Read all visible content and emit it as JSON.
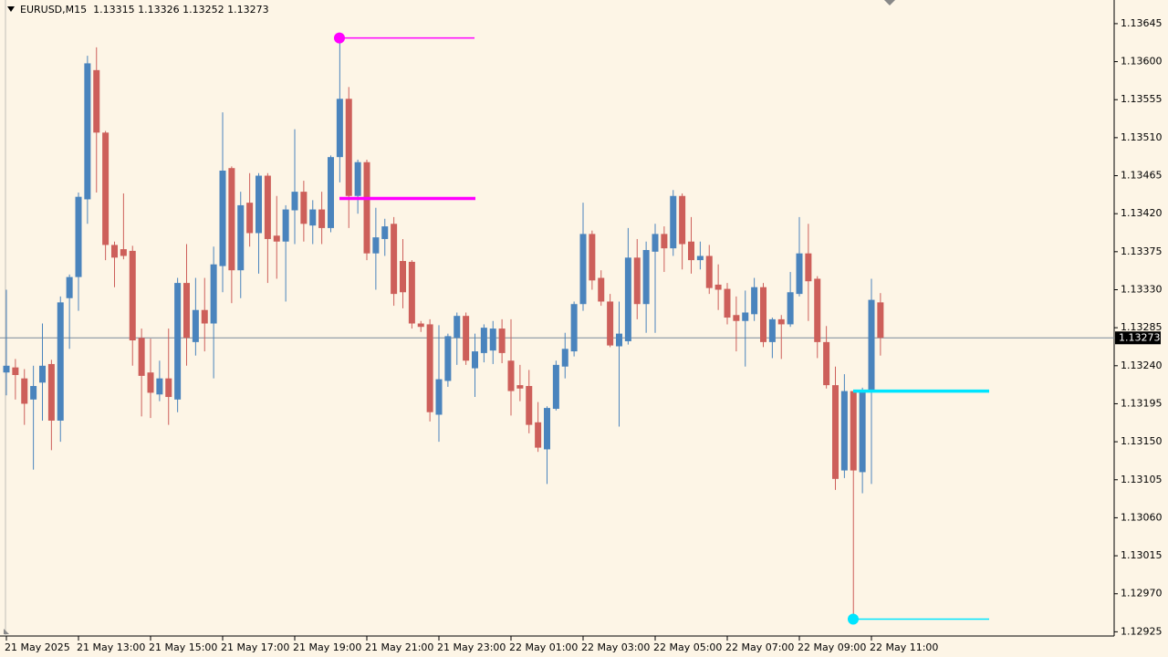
{
  "chart_data": {
    "type": "candlestick",
    "title": "EURUSD,M15  1.13315 1.13326 1.13252 1.13273",
    "categories": [
      "21 May 2025",
      null,
      null,
      null,
      null,
      null,
      null,
      null,
      "21 May 13:00",
      null,
      null,
      null,
      null,
      null,
      null,
      null,
      "21 May 15:00",
      null,
      null,
      null,
      null,
      null,
      null,
      null,
      "21 May 17:00",
      null,
      null,
      null,
      null,
      null,
      null,
      null,
      "21 May 19:00",
      null,
      null,
      null,
      null,
      null,
      null,
      null,
      "21 May 21:00",
      null,
      null,
      null,
      null,
      null,
      null,
      null,
      "21 May 23:00",
      null,
      null,
      null,
      null,
      null,
      null,
      null,
      "22 May 01:00",
      null,
      null,
      null,
      null,
      null,
      null,
      null,
      "22 May 03:00",
      null,
      null,
      null,
      null,
      null,
      null,
      null,
      "22 May 05:00",
      null,
      null,
      null,
      null,
      null,
      null,
      null,
      "22 May 07:00",
      null,
      null,
      null,
      null,
      null,
      null,
      null,
      "22 May 09:00",
      null,
      null,
      null,
      null,
      null,
      null,
      null,
      "22 May 11:00",
      null
    ],
    "open": [
      1.13232,
      1.13238,
      1.13225,
      1.132,
      1.1322,
      1.13242,
      1.13175,
      1.1332,
      1.13345,
      1.13437,
      1.1359,
      1.13516,
      1.13383,
      1.13378,
      1.13376,
      1.13273,
      1.13232,
      1.13206,
      1.13225,
      1.132,
      1.13338,
      1.13268,
      1.13306,
      1.1329,
      1.13358,
      1.13474,
      1.13353,
      1.13433,
      1.13397,
      1.13465,
      1.13394,
      1.13387,
      1.13424,
      1.13446,
      1.13406,
      1.13425,
      1.13403,
      1.13487,
      1.13556,
      1.13441,
      1.13481,
      1.13373,
      1.1339,
      1.13408,
      1.13364,
      1.13363,
      1.1329,
      1.13289,
      1.13182,
      1.13222,
      1.13273,
      1.13299,
      1.13237,
      1.13255,
      1.13258,
      1.13284,
      1.13246,
      1.13217,
      1.13216,
      1.13173,
      1.13141,
      1.13189,
      1.13239,
      1.13257,
      1.13313,
      1.13396,
      1.13344,
      1.13316,
      1.13263,
      1.13269,
      1.13368,
      1.13313,
      1.13375,
      1.13396,
      1.13379,
      1.13441,
      1.13387,
      1.13365,
      1.1337,
      1.13336,
      1.13331,
      1.133,
      1.13293,
      1.13301,
      1.13333,
      1.13268,
      1.13295,
      1.13289,
      1.13325,
      1.13373,
      1.13343,
      1.13268,
      1.13217,
      1.13116,
      1.1321,
      1.13114,
      1.1321,
      1.13315
    ],
    "high": [
      1.1333,
      1.13248,
      1.13236,
      1.1324,
      1.1329,
      1.13247,
      1.13322,
      1.13348,
      1.13445,
      1.13607,
      1.13617,
      1.13518,
      1.13387,
      1.13444,
      1.13382,
      1.13284,
      1.13272,
      1.13246,
      1.13284,
      1.13344,
      1.13384,
      1.13344,
      1.13344,
      1.13381,
      1.1354,
      1.13476,
      1.13446,
      1.13468,
      1.13468,
      1.13468,
      1.13441,
      1.1343,
      1.1352,
      1.13459,
      1.13436,
      1.13446,
      1.13489,
      1.13628,
      1.1357,
      1.13484,
      1.13484,
      1.13427,
      1.13414,
      1.13416,
      1.1339,
      1.13365,
      1.13293,
      1.13295,
      1.13288,
      1.13278,
      1.13303,
      1.13303,
      1.13278,
      1.13289,
      1.13293,
      1.13295,
      1.13295,
      1.13241,
      1.13235,
      1.13197,
      1.13192,
      1.13246,
      1.13279,
      1.13316,
      1.13433,
      1.134,
      1.13353,
      1.13325,
      1.13316,
      1.13403,
      1.1339,
      1.13387,
      1.13408,
      1.13405,
      1.13448,
      1.13444,
      1.13416,
      1.13387,
      1.13383,
      1.1336,
      1.13338,
      1.13322,
      1.13329,
      1.13344,
      1.13338,
      1.13297,
      1.133,
      1.13351,
      1.13416,
      1.13408,
      1.13346,
      1.13287,
      1.13239,
      1.1323,
      1.1321,
      1.13214,
      1.13343,
      1.13326
    ],
    "low": [
      1.13205,
      1.132,
      1.1317,
      1.13117,
      1.13175,
      1.1314,
      1.1315,
      1.1326,
      1.13305,
      1.13408,
      1.13445,
      1.13365,
      1.13333,
      1.13366,
      1.1324,
      1.1318,
      1.13178,
      1.13198,
      1.1317,
      1.13185,
      1.1324,
      1.13252,
      1.13257,
      1.13225,
      1.13327,
      1.13314,
      1.1332,
      1.13381,
      1.13349,
      1.13338,
      1.13343,
      1.13316,
      1.13384,
      1.13387,
      1.13384,
      1.13384,
      1.13398,
      1.13457,
      1.13403,
      1.1342,
      1.13365,
      1.1333,
      1.1337,
      1.13311,
      1.13308,
      1.13284,
      1.1328,
      1.13174,
      1.1315,
      1.13215,
      1.13241,
      1.13241,
      1.13203,
      1.13244,
      1.13242,
      1.13243,
      1.13181,
      1.13198,
      1.1316,
      1.13138,
      1.131,
      1.13187,
      1.13225,
      1.13251,
      1.13305,
      1.1333,
      1.13311,
      1.13262,
      1.13168,
      1.13265,
      1.13295,
      1.13279,
      1.13279,
      1.13351,
      1.1337,
      1.13354,
      1.13349,
      1.13354,
      1.13325,
      1.13306,
      1.13289,
      1.13257,
      1.13239,
      1.13293,
      1.13262,
      1.13249,
      1.13248,
      1.13286,
      1.13322,
      1.13293,
      1.13249,
      1.13213,
      1.13093,
      1.13107,
      1.1294,
      1.13089,
      1.131,
      1.13252
    ],
    "close": [
      1.1324,
      1.13229,
      1.13195,
      1.13216,
      1.1324,
      1.13175,
      1.13315,
      1.13345,
      1.1344,
      1.13598,
      1.13516,
      1.13383,
      1.13368,
      1.1337,
      1.1327,
      1.13228,
      1.13208,
      1.13225,
      1.13203,
      1.13338,
      1.13273,
      1.13306,
      1.1329,
      1.1336,
      1.13471,
      1.13353,
      1.1343,
      1.13397,
      1.13465,
      1.1339,
      1.13387,
      1.13425,
      1.13446,
      1.13408,
      1.13425,
      1.13403,
      1.13487,
      1.13556,
      1.13441,
      1.13481,
      1.13373,
      1.13392,
      1.13405,
      1.13325,
      1.13327,
      1.1329,
      1.13286,
      1.13185,
      1.13224,
      1.13275,
      1.13299,
      1.13246,
      1.13257,
      1.13285,
      1.13284,
      1.13255,
      1.1321,
      1.13213,
      1.1317,
      1.13143,
      1.1319,
      1.13241,
      1.1326,
      1.13313,
      1.13396,
      1.13341,
      1.13316,
      1.13264,
      1.13278,
      1.13368,
      1.13313,
      1.13377,
      1.13396,
      1.13379,
      1.13441,
      1.13384,
      1.13365,
      1.1337,
      1.13332,
      1.1333,
      1.13297,
      1.13293,
      1.13303,
      1.13333,
      1.13268,
      1.13295,
      1.13289,
      1.13327,
      1.13373,
      1.1334,
      1.13268,
      1.13217,
      1.13106,
      1.1321,
      1.13116,
      1.1321,
      1.13318,
      1.13273
    ],
    "up_color": "#4a84bd",
    "down_color": "#cd5f5a",
    "ylim": [
      1.1292,
      1.13673
    ],
    "yticks": [
      1.13645,
      {
        "value": 1.136,
        "label": "1.13600"
      },
      1.13555,
      {
        "value": 1.1351,
        "label": "1.13510"
      },
      1.13465,
      {
        "value": 1.1342,
        "label": "1.13420"
      },
      1.13375,
      {
        "value": 1.1333,
        "label": "1.13330"
      },
      1.13285,
      {
        "value": 1.1324,
        "label": "1.13240"
      },
      1.13195,
      {
        "value": 1.1315,
        "label": "1.13150"
      },
      1.13105,
      {
        "value": 1.1306,
        "label": "1.13060"
      },
      1.13015,
      {
        "value": 1.1297,
        "label": "1.12970"
      },
      1.12925
    ],
    "current_price": 1.13273,
    "levels": [
      {
        "value": 1.13628,
        "color": "#ff00ff"
      },
      {
        "value": 1.13438,
        "color": "#ff00ff"
      },
      {
        "value": 1.1321,
        "color": "#00e5ff"
      },
      {
        "value": 1.1294,
        "color": "#00e5ff"
      }
    ]
  }
}
